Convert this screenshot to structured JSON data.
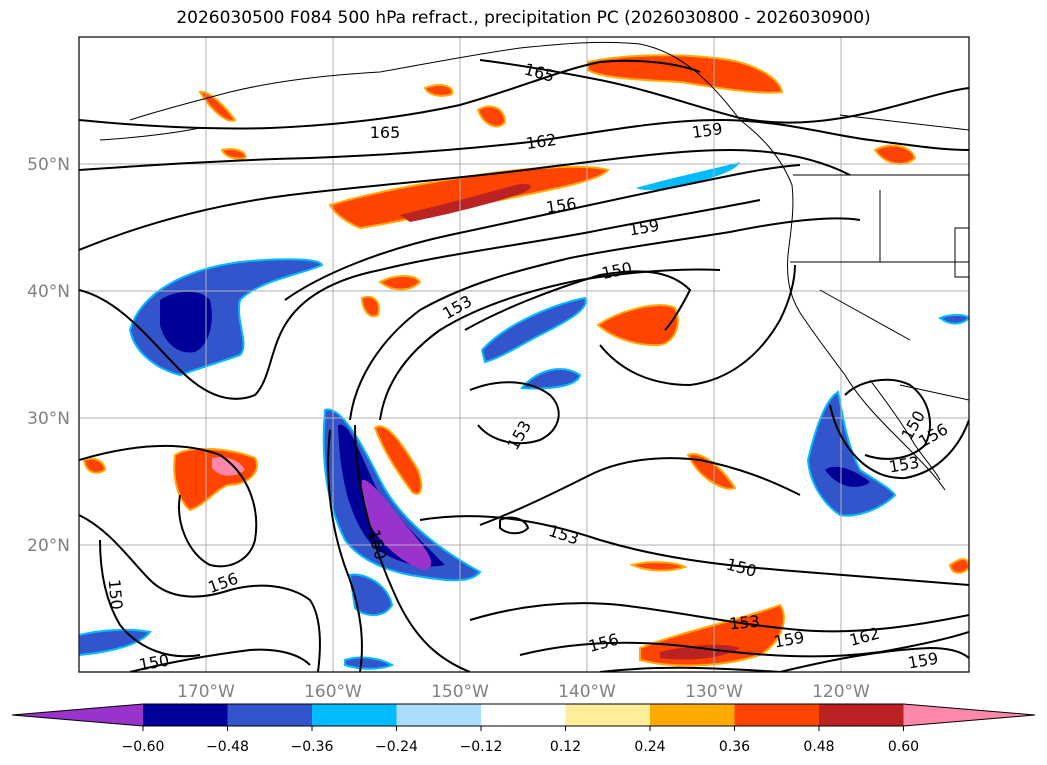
{
  "title": "2026030500 F084 500 hPa refract., precipitation PC (2026030800 - 2026030900)",
  "map": {
    "latitude_labels": [
      "50°N",
      "40°N",
      "30°N",
      "20°N"
    ],
    "longitude_labels": [
      "170°W",
      "160°W",
      "150°W",
      "140°W",
      "130°W",
      "120°W"
    ],
    "contour_labels": [
      {
        "text": "165"
      },
      {
        "text": "165"
      },
      {
        "text": "162"
      },
      {
        "text": "159"
      },
      {
        "text": "156"
      },
      {
        "text": "159"
      },
      {
        "text": "150"
      },
      {
        "text": "153"
      },
      {
        "text": "153"
      },
      {
        "text": "153"
      },
      {
        "text": "150"
      },
      {
        "text": "156"
      },
      {
        "text": "150"
      },
      {
        "text": "150"
      },
      {
        "text": "150"
      },
      {
        "text": "156"
      },
      {
        "text": "153"
      },
      {
        "text": "159"
      },
      {
        "text": "162"
      },
      {
        "text": "159"
      },
      {
        "text": "153"
      },
      {
        "text": "156"
      },
      {
        "text": "150"
      }
    ]
  },
  "colorbar": {
    "colors": [
      "#9933cc",
      "#000099",
      "#3355cc",
      "#00bbff",
      "#aaddff",
      "#ffffff",
      "#ffee99",
      "#ffaa00",
      "#ff4400",
      "#bb2222",
      "#ff88aa"
    ],
    "tick_labels": [
      "−0.60",
      "−0.48",
      "−0.36",
      "−0.24",
      "−0.12",
      "0.12",
      "0.24",
      "0.36",
      "0.48",
      "0.60"
    ]
  }
}
